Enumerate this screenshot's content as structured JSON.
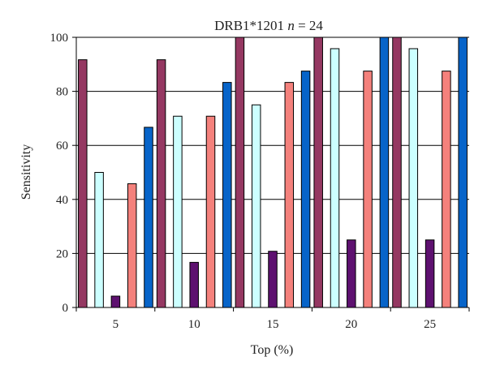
{
  "chart_data": {
    "type": "bar",
    "title": "DRB1*1201",
    "title_n_symbol": "n",
    "title_n_value": "= 24",
    "xlabel": "Top (%)",
    "ylabel": "Sensitivity",
    "ylim": [
      0,
      100
    ],
    "yticks": [
      "0",
      "20",
      "40",
      "60",
      "80",
      "100"
    ],
    "grid": true,
    "legend": "none",
    "categories": [
      "5",
      "10",
      "15",
      "20",
      "25"
    ],
    "series": [
      {
        "color": "#953862",
        "values": [
          91.7,
          91.7,
          100,
          100,
          100
        ]
      },
      {
        "color": "#ccffff",
        "values": [
          50,
          70.8,
          75,
          95.8,
          95.8
        ]
      },
      {
        "color": "#5e1170",
        "values": [
          4.2,
          16.7,
          20.8,
          25,
          25
        ]
      },
      {
        "color": "#f4817c",
        "values": [
          45.8,
          70.8,
          83.3,
          87.5,
          87.5
        ]
      },
      {
        "color": "#0764c9",
        "values": [
          66.7,
          83.3,
          87.5,
          100,
          100
        ]
      }
    ]
  }
}
